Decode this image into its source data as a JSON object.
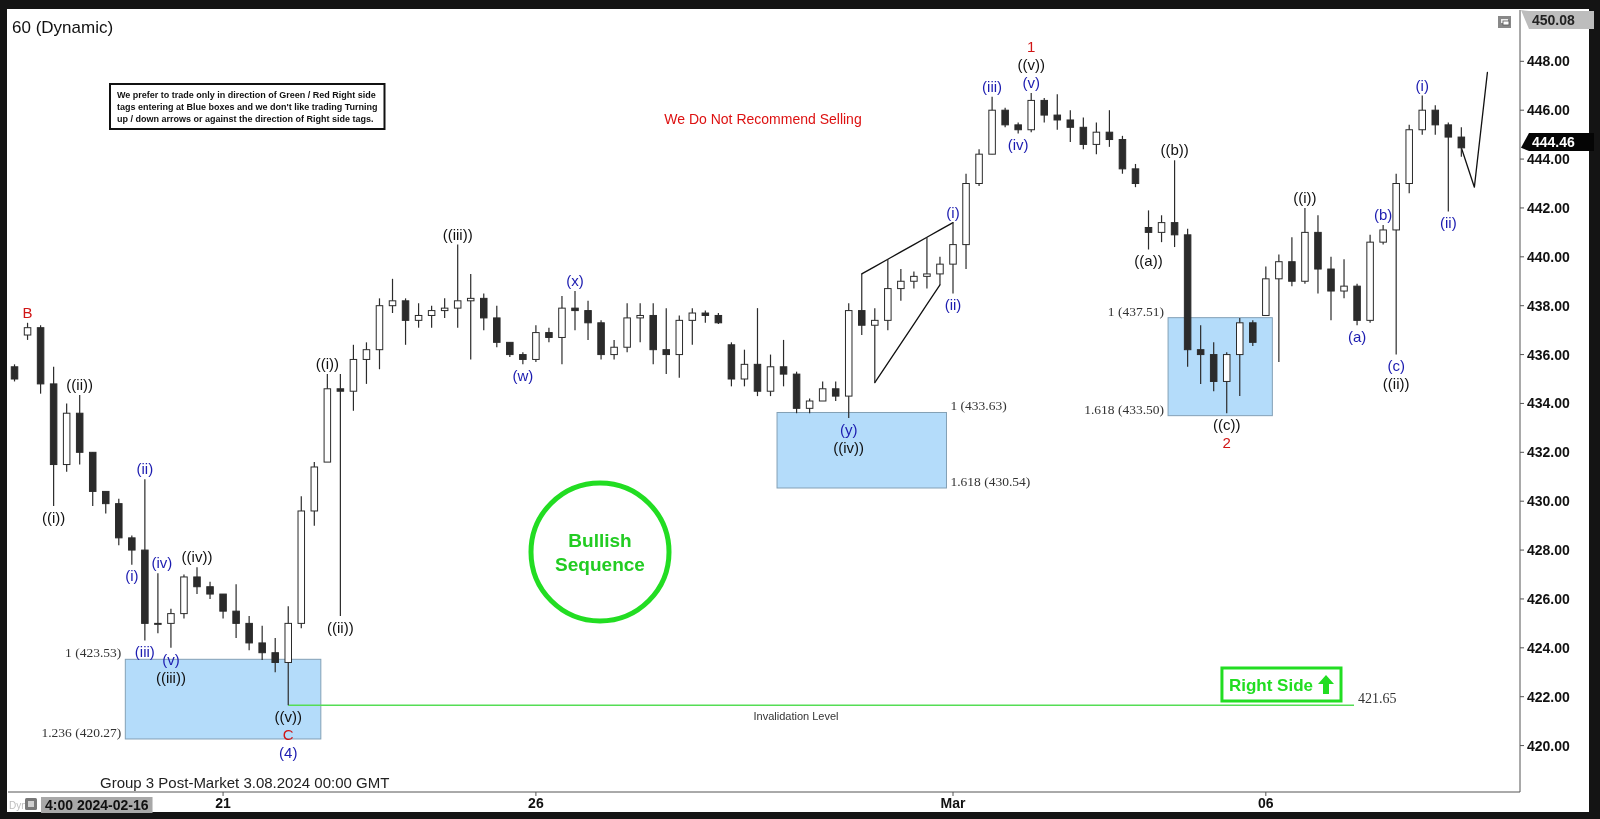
{
  "chart_data": {
    "type": "candlestick",
    "title": "60 (Dynamic)",
    "color": "#2b2b2b",
    "categories": [
      null,
      null,
      null,
      null,
      null,
      null,
      null,
      null,
      null,
      null,
      null,
      null,
      null,
      null,
      null,
      null,
      "21",
      null,
      null,
      null,
      null,
      null,
      null,
      null,
      null,
      null,
      null,
      null,
      null,
      null,
      null,
      null,
      null,
      null,
      null,
      null,
      null,
      null,
      null,
      null,
      "26",
      null,
      null,
      null,
      null,
      null,
      null,
      null,
      null,
      null,
      null,
      null,
      null,
      null,
      null,
      null,
      null,
      null,
      null,
      null,
      null,
      null,
      null,
      null,
      null,
      null,
      null,
      null,
      null,
      null,
      null,
      null,
      "Mar",
      null,
      null,
      null,
      null,
      null,
      null,
      null,
      null,
      null,
      null,
      null,
      null,
      null,
      null,
      null,
      null,
      null,
      null,
      null,
      null,
      null,
      null,
      null,
      "06",
      null,
      null,
      null,
      null,
      null,
      null,
      null,
      null,
      null,
      null,
      null,
      null,
      null,
      null,
      null,
      null,
      null,
      null,
      null
    ],
    "ohlc": [
      [
        435.5,
        435.6,
        434.9,
        435.0
      ],
      [
        436.8,
        437.3,
        436.6,
        437.1
      ],
      [
        437.1,
        437.2,
        434.4,
        434.8
      ],
      [
        434.8,
        435.5,
        429.8,
        431.5
      ],
      [
        431.5,
        434.0,
        431.2,
        433.6
      ],
      [
        433.6,
        434.35,
        431.5,
        432.0
      ],
      [
        432.0,
        432.0,
        429.8,
        430.4
      ],
      [
        430.4,
        430.4,
        429.5,
        429.9
      ],
      [
        429.9,
        430.1,
        428.2,
        428.5
      ],
      [
        428.5,
        428.6,
        427.4,
        428.0
      ],
      [
        428.0,
        430.9,
        424.3,
        425.0
      ],
      [
        425.0,
        427.05,
        424.6,
        425.0
      ],
      [
        425.0,
        425.6,
        424.0,
        425.4
      ],
      [
        425.4,
        427.0,
        425.2,
        426.9
      ],
      [
        426.9,
        427.3,
        426.2,
        426.5
      ],
      [
        426.5,
        426.7,
        426.0,
        426.2
      ],
      [
        426.2,
        426.2,
        425.2,
        425.5
      ],
      [
        425.5,
        426.6,
        424.4,
        425.0
      ],
      [
        425.0,
        425.3,
        423.9,
        424.2
      ],
      [
        424.2,
        424.9,
        423.5,
        423.8
      ],
      [
        423.8,
        424.4,
        423.0,
        423.4
      ],
      [
        423.4,
        425.7,
        421.65,
        425.0
      ],
      [
        425.0,
        430.2,
        424.8,
        429.6
      ],
      [
        429.6,
        431.6,
        429.0,
        431.4
      ],
      [
        431.6,
        435.2,
        431.6,
        434.6
      ],
      [
        434.6,
        435.2,
        425.3,
        434.5
      ],
      [
        434.5,
        436.4,
        433.7,
        435.8
      ],
      [
        435.8,
        436.5,
        434.8,
        436.2
      ],
      [
        436.2,
        438.3,
        435.4,
        438.0
      ],
      [
        438.0,
        439.1,
        437.7,
        438.2
      ],
      [
        438.2,
        438.3,
        436.4,
        437.4
      ],
      [
        437.4,
        438.1,
        437.1,
        437.6
      ],
      [
        437.6,
        438.0,
        437.1,
        437.8
      ],
      [
        437.8,
        438.3,
        437.5,
        437.9
      ],
      [
        437.9,
        440.5,
        437.1,
        438.2
      ],
      [
        438.2,
        439.3,
        435.8,
        438.3
      ],
      [
        438.3,
        438.5,
        437.0,
        437.5
      ],
      [
        437.5,
        438.0,
        436.3,
        436.5
      ],
      [
        436.5,
        436.5,
        435.9,
        436.0
      ],
      [
        436.0,
        436.1,
        435.6,
        435.8
      ],
      [
        435.8,
        437.2,
        435.7,
        436.9
      ],
      [
        436.9,
        437.1,
        436.5,
        436.7
      ],
      [
        436.7,
        438.4,
        435.6,
        437.9
      ],
      [
        437.9,
        438.6,
        437.0,
        437.8
      ],
      [
        437.8,
        438.2,
        436.6,
        437.3
      ],
      [
        437.3,
        437.4,
        435.8,
        436.0
      ],
      [
        436.0,
        436.6,
        435.8,
        436.3
      ],
      [
        436.3,
        438.1,
        436.1,
        437.5
      ],
      [
        437.5,
        438.1,
        436.5,
        437.6
      ],
      [
        437.6,
        438.1,
        435.6,
        436.2
      ],
      [
        436.2,
        437.9,
        435.2,
        436.0
      ],
      [
        436.0,
        437.6,
        435.05,
        437.4
      ],
      [
        437.4,
        437.9,
        436.4,
        437.7
      ],
      [
        437.7,
        437.8,
        437.3,
        437.6
      ],
      [
        437.6,
        437.7,
        437.25,
        437.3
      ],
      [
        436.4,
        436.5,
        434.7,
        435.0
      ],
      [
        435.0,
        436.2,
        434.7,
        435.6
      ],
      [
        435.6,
        437.9,
        434.3,
        434.5
      ],
      [
        434.5,
        436.0,
        434.3,
        435.5
      ],
      [
        435.5,
        436.6,
        434.7,
        435.2
      ],
      [
        435.2,
        435.3,
        433.6,
        433.8
      ],
      [
        433.8,
        434.2,
        433.6,
        434.1
      ],
      [
        434.1,
        434.9,
        434.1,
        434.6
      ],
      [
        434.6,
        434.9,
        434.1,
        434.3
      ],
      [
        434.3,
        438.1,
        433.4,
        437.8
      ],
      [
        437.8,
        439.3,
        436.8,
        437.2
      ],
      [
        437.2,
        437.9,
        434.85,
        437.4
      ],
      [
        437.4,
        439.9,
        437.0,
        438.7
      ],
      [
        438.7,
        439.5,
        438.2,
        439.0
      ],
      [
        439.0,
        439.4,
        438.7,
        439.2
      ],
      [
        439.2,
        440.8,
        438.7,
        439.3
      ],
      [
        439.3,
        440.0,
        438.85,
        439.7
      ],
      [
        439.7,
        441.4,
        438.5,
        440.5
      ],
      [
        440.5,
        443.4,
        439.5,
        443.0
      ],
      [
        443.0,
        444.4,
        442.9,
        444.2
      ],
      [
        444.2,
        446.55,
        444.2,
        446.0
      ],
      [
        446.0,
        446.1,
        445.3,
        445.4
      ],
      [
        445.4,
        445.5,
        445.05,
        445.2
      ],
      [
        445.2,
        446.7,
        445.1,
        446.4
      ],
      [
        446.4,
        446.5,
        445.5,
        445.8
      ],
      [
        445.8,
        446.65,
        445.2,
        445.6
      ],
      [
        445.6,
        446.0,
        444.7,
        445.3
      ],
      [
        445.3,
        445.7,
        444.4,
        444.6
      ],
      [
        444.6,
        445.5,
        444.2,
        445.1
      ],
      [
        445.1,
        446.0,
        444.5,
        444.8
      ],
      [
        444.8,
        444.95,
        443.4,
        443.6
      ],
      [
        443.6,
        443.8,
        442.85,
        443.0
      ],
      [
        441.2,
        441.9,
        440.3,
        441.0
      ],
      [
        441.0,
        441.7,
        440.6,
        441.4
      ],
      [
        441.4,
        443.95,
        440.4,
        440.9
      ],
      [
        440.9,
        441.15,
        435.5,
        436.2
      ],
      [
        436.2,
        437.2,
        434.8,
        436.0
      ],
      [
        436.0,
        436.5,
        434.5,
        434.9
      ],
      [
        434.9,
        436.1,
        433.6,
        436.0
      ],
      [
        436.0,
        437.5,
        434.3,
        437.3
      ],
      [
        437.3,
        437.4,
        436.35,
        436.5
      ],
      [
        437.6,
        439.6,
        437.6,
        439.1
      ],
      [
        439.1,
        440.1,
        435.7,
        439.8
      ],
      [
        439.8,
        440.8,
        438.8,
        439.0
      ],
      [
        439.0,
        442.0,
        438.9,
        441.0
      ],
      [
        441.0,
        441.7,
        438.5,
        439.5
      ],
      [
        439.5,
        440.0,
        437.4,
        438.6
      ],
      [
        438.6,
        439.9,
        438.3,
        438.8
      ],
      [
        438.8,
        438.9,
        437.2,
        437.4
      ],
      [
        437.4,
        440.9,
        437.3,
        440.6
      ],
      [
        440.6,
        441.3,
        440.5,
        441.1
      ],
      [
        441.1,
        443.4,
        436.0,
        443.0
      ],
      [
        443.0,
        445.4,
        442.6,
        445.2
      ],
      [
        445.2,
        446.6,
        445.0,
        446.0
      ],
      [
        446.0,
        446.2,
        445.0,
        445.4
      ],
      [
        445.4,
        445.5,
        441.85,
        444.9
      ],
      [
        444.9,
        445.3,
        444.1,
        444.46
      ],
      null,
      null,
      null,
      null
    ],
    "series": [
      {
        "type": "line",
        "color": "#111111",
        "values": [
          null,
          null,
          null,
          null,
          null,
          null,
          null,
          null,
          null,
          null,
          null,
          null,
          null,
          null,
          null,
          null,
          null,
          null,
          null,
          null,
          null,
          null,
          null,
          null,
          null,
          null,
          null,
          null,
          null,
          null,
          null,
          null,
          null,
          null,
          null,
          null,
          null,
          null,
          null,
          null,
          null,
          null,
          null,
          null,
          null,
          null,
          null,
          null,
          null,
          null,
          null,
          null,
          null,
          null,
          null,
          null,
          null,
          null,
          null,
          null,
          null,
          null,
          null,
          null,
          null,
          439.3,
          439.6,
          439.9,
          440.2,
          440.5,
          440.8,
          441.1,
          441.4,
          null,
          null,
          null,
          null,
          null,
          null,
          null,
          null,
          null,
          null,
          null,
          null,
          null,
          null,
          null,
          null,
          null,
          null,
          null,
          null,
          null,
          null,
          null,
          null,
          null,
          null,
          null,
          null,
          null,
          null,
          null,
          null,
          null,
          null,
          null,
          null,
          null,
          null,
          null,
          null,
          null,
          null,
          null
        ]
      },
      {
        "type": "line",
        "color": "#111111",
        "values": [
          null,
          null,
          null,
          null,
          null,
          null,
          null,
          null,
          null,
          null,
          null,
          null,
          null,
          null,
          null,
          null,
          null,
          null,
          null,
          null,
          null,
          null,
          null,
          null,
          null,
          null,
          null,
          null,
          null,
          null,
          null,
          null,
          null,
          null,
          null,
          null,
          null,
          null,
          null,
          null,
          null,
          null,
          null,
          null,
          null,
          null,
          null,
          null,
          null,
          null,
          null,
          null,
          null,
          null,
          null,
          null,
          null,
          null,
          null,
          null,
          null,
          null,
          null,
          null,
          null,
          null,
          434.85,
          435.65,
          436.45,
          437.25,
          438.05,
          438.85,
          null,
          null,
          null,
          null,
          null,
          null,
          null,
          null,
          null,
          null,
          null,
          null,
          null,
          null,
          null,
          null,
          null,
          null,
          null,
          null,
          null,
          null,
          null,
          null,
          null,
          null,
          null,
          null,
          null,
          null,
          null,
          null,
          null,
          null,
          null,
          null,
          null,
          null,
          null,
          null,
          null,
          null,
          null,
          null
        ]
      },
      {
        "type": "line",
        "color": "#111111",
        "values": [
          null,
          null,
          null,
          null,
          null,
          null,
          null,
          null,
          null,
          null,
          null,
          null,
          null,
          null,
          null,
          null,
          null,
          null,
          null,
          null,
          null,
          null,
          null,
          null,
          null,
          null,
          null,
          null,
          null,
          null,
          null,
          null,
          null,
          null,
          null,
          null,
          null,
          null,
          null,
          null,
          null,
          null,
          null,
          null,
          null,
          null,
          null,
          null,
          null,
          null,
          null,
          null,
          null,
          null,
          null,
          null,
          null,
          null,
          null,
          null,
          null,
          null,
          null,
          null,
          null,
          null,
          null,
          null,
          null,
          null,
          null,
          null,
          null,
          null,
          null,
          null,
          null,
          null,
          null,
          null,
          null,
          null,
          null,
          null,
          null,
          null,
          null,
          null,
          null,
          null,
          null,
          null,
          null,
          null,
          null,
          null,
          null,
          null,
          null,
          null,
          null,
          null,
          null,
          null,
          null,
          null,
          null,
          null,
          null,
          null,
          null,
          444.46,
          442.85,
          447.55,
          null,
          null
        ]
      }
    ],
    "bands": [
      {
        "axis": "y",
        "from": 420.27,
        "to": 423.53,
        "color": "#b4dcfa"
      },
      {
        "axis": "y",
        "from": 430.54,
        "to": 433.63,
        "color": "#b4dcfa"
      },
      {
        "axis": "y",
        "from": 433.5,
        "to": 437.51,
        "color": "#b4dcfa"
      }
    ],
    "ylim": [
      418.1,
      450.1
    ],
    "yticks": [
      {
        "value": 420,
        "label": "420.00"
      },
      {
        "value": 422,
        "label": "422.00"
      },
      {
        "value": 424,
        "label": "424.00"
      },
      {
        "value": 426,
        "label": "426.00"
      },
      {
        "value": 428,
        "label": "428.00"
      },
      {
        "value": 430,
        "label": "430.00"
      },
      {
        "value": 432,
        "label": "432.00"
      },
      {
        "value": 434,
        "label": "434.00"
      },
      {
        "value": 436,
        "label": "436.00"
      },
      {
        "value": 438,
        "label": "438.00"
      },
      {
        "value": 440,
        "label": "440.00"
      },
      {
        "value": 442,
        "label": "442.00"
      },
      {
        "value": 444,
        "label": "444.00"
      },
      {
        "value": 446,
        "label": "446.00"
      },
      {
        "value": 448,
        "label": "448.00"
      }
    ],
    "ref_lines": [
      {
        "axis": "y",
        "value": 421.65,
        "label": "421.65",
        "color": "#55dd55"
      }
    ],
    "annotations": [
      "We prefer to trade only in direction of Green / Red Right side tags entering at Blue boxes and we don't like trading Turning up / down arrows or against the direction of Right side tags.",
      "We Do Not Recommend Selling",
      "Bullish Sequence",
      "Right Side",
      "Group 3 Post-Market 3.08.2024 00:00 GMT",
      "4:00 2024-02-16",
      "Dyn",
      "450.08",
      "Invalidation Level",
      "B",
      "((i))",
      "((ii))",
      "(i)",
      "(ii)",
      "(iii)",
      "(iv)",
      "(v)",
      "((iii))",
      "((iv))",
      "((v))",
      "C",
      "(4)",
      "((i))",
      "((ii))",
      "((iii))",
      "(w)",
      "(x)",
      "(y)",
      "((iv))",
      "(i)",
      "(ii)",
      "(iii)",
      "(iv)",
      "(v)",
      "((v))",
      "1",
      "((a))",
      "((b))",
      "((c))",
      "2",
      "((i))",
      "(a)",
      "(b)",
      "(c)",
      "((ii))",
      "(i)",
      "(ii)",
      "1 (423.53)",
      "1.236 (420.27)",
      "1 (433.63)",
      "1.618 (430.54)",
      "1 (437.51)",
      "1.618 (433.50)",
      "444.46"
    ]
  }
}
